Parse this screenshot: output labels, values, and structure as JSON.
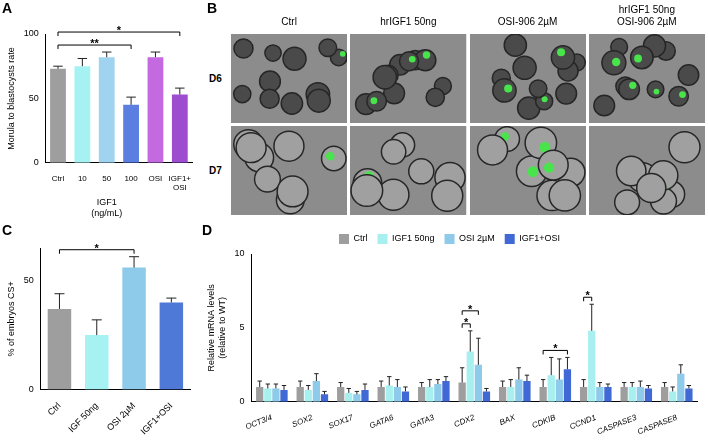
{
  "chart_data": [
    {
      "panel": "A",
      "type": "bar",
      "y_label": "Morula to blastocysts rate",
      "categories": [
        "Ctrl",
        "10",
        "50",
        "100",
        "OSI",
        "IGF1+OSI"
      ],
      "category_group": {
        "lines": [
          "IGF1",
          "(ng/mL)"
        ],
        "members": [
          "10",
          "50",
          "100"
        ]
      },
      "values": [
        73,
        75,
        82,
        45,
        82,
        53
      ],
      "errors": [
        2,
        6,
        4,
        6,
        4,
        5
      ],
      "colors": [
        "#9e9e9e",
        "#a6f2f2",
        "#9fd3ef",
        "#5a7fe0",
        "#c46ae0",
        "#9d4ed0"
      ],
      "ylim": [
        0,
        100
      ],
      "yticks": [
        0,
        50,
        100
      ],
      "grid": false,
      "significance": [
        {
          "from": "Ctrl",
          "to": "100",
          "label": "**"
        },
        {
          "from": "Ctrl",
          "to": "IGF1+OSI",
          "label": "*"
        }
      ]
    },
    {
      "panel": "C",
      "type": "bar",
      "y_label": "% of embryos CS+",
      "categories": [
        "Ctrl",
        "IGF 50ng",
        "OSI 2µM",
        "IGF1+OSI"
      ],
      "values": [
        37,
        25,
        56,
        40
      ],
      "errors": [
        7,
        7,
        5,
        2
      ],
      "colors": [
        "#9e9e9e",
        "#a6f2f2",
        "#8ecbea",
        "#4f79d6"
      ],
      "ylim": [
        0,
        65
      ],
      "yticks": [
        0,
        50
      ],
      "grid": false,
      "significance": [
        {
          "from": "Ctrl",
          "to": "OSI 2µM",
          "label": "*"
        }
      ]
    },
    {
      "panel": "D",
      "type": "bar",
      "y_label": [
        "Relative mRNA levels",
        "(relative to WT)"
      ],
      "categories": [
        "OCT3/4",
        "SOX2",
        "SOX17",
        "GATA6",
        "GATA3",
        "CDX2",
        "BAX",
        "CDKIB",
        "CCND1",
        "CASPASE3",
        "CASPASE8"
      ],
      "series": [
        {
          "name": "Ctrl",
          "color": "#9e9e9e",
          "values": [
            1,
            1,
            1,
            1,
            1,
            1.3,
            1,
            1,
            1,
            1,
            1
          ],
          "errors": [
            0.4,
            0.4,
            0.3,
            0.4,
            0.3,
            1.0,
            0.4,
            0.5,
            0.5,
            0.3,
            0.3
          ]
        },
        {
          "name": "IGF1 50ng",
          "color": "#a8f0f0",
          "values": [
            0.9,
            0.8,
            0.6,
            1.1,
            1.0,
            3.4,
            1.0,
            1.8,
            4.8,
            1.0,
            0.7
          ],
          "errors": [
            0.3,
            0.3,
            0.3,
            0.6,
            0.5,
            1.4,
            0.5,
            1.2,
            1.8,
            0.3,
            0.3
          ]
        },
        {
          "name": "OSI 2µM",
          "color": "#8ecbea",
          "values": [
            0.9,
            1.4,
            0.5,
            1.0,
            1.2,
            2.5,
            1.5,
            1.5,
            1.0,
            1.0,
            1.9
          ],
          "errors": [
            0.3,
            0.5,
            0.2,
            0.5,
            0.3,
            1.8,
            0.8,
            1.4,
            0.3,
            0.4,
            0.6
          ]
        },
        {
          "name": "IGF1+OSI",
          "color": "#4169d6",
          "values": [
            0.8,
            0.5,
            0.8,
            0.7,
            1.4,
            0.7,
            1.4,
            2.2,
            1.0,
            0.9,
            0.9
          ],
          "errors": [
            0.3,
            0.2,
            0.4,
            0.3,
            0.3,
            0.2,
            0.4,
            0.8,
            0.2,
            0.2,
            0.2
          ]
        }
      ],
      "ylim": [
        0,
        10
      ],
      "yticks": [
        0,
        5,
        10
      ],
      "grid": false,
      "legend": "top",
      "significance": [
        {
          "category": "CDX2",
          "from": "Ctrl",
          "to": "IGF1 50ng",
          "label": "*"
        },
        {
          "category": "CDX2",
          "from": "Ctrl",
          "to": "OSI 2µM",
          "label": "*"
        },
        {
          "category": "CDKIB",
          "from": "Ctrl",
          "to": "IGF1+OSI",
          "label": "*"
        },
        {
          "category": "CCND1",
          "from": "Ctrl",
          "to": "IGF1 50ng",
          "label": "*"
        }
      ]
    }
  ],
  "image_panel": {
    "panel": "B",
    "columns": [
      [
        "Ctrl"
      ],
      [
        "hrIGF1 50ng"
      ],
      [
        "OSI-906 2µM"
      ],
      [
        "hrIGF1 50ng",
        "OSI-906 2µM"
      ]
    ],
    "rows": [
      "D6",
      "D7"
    ]
  }
}
